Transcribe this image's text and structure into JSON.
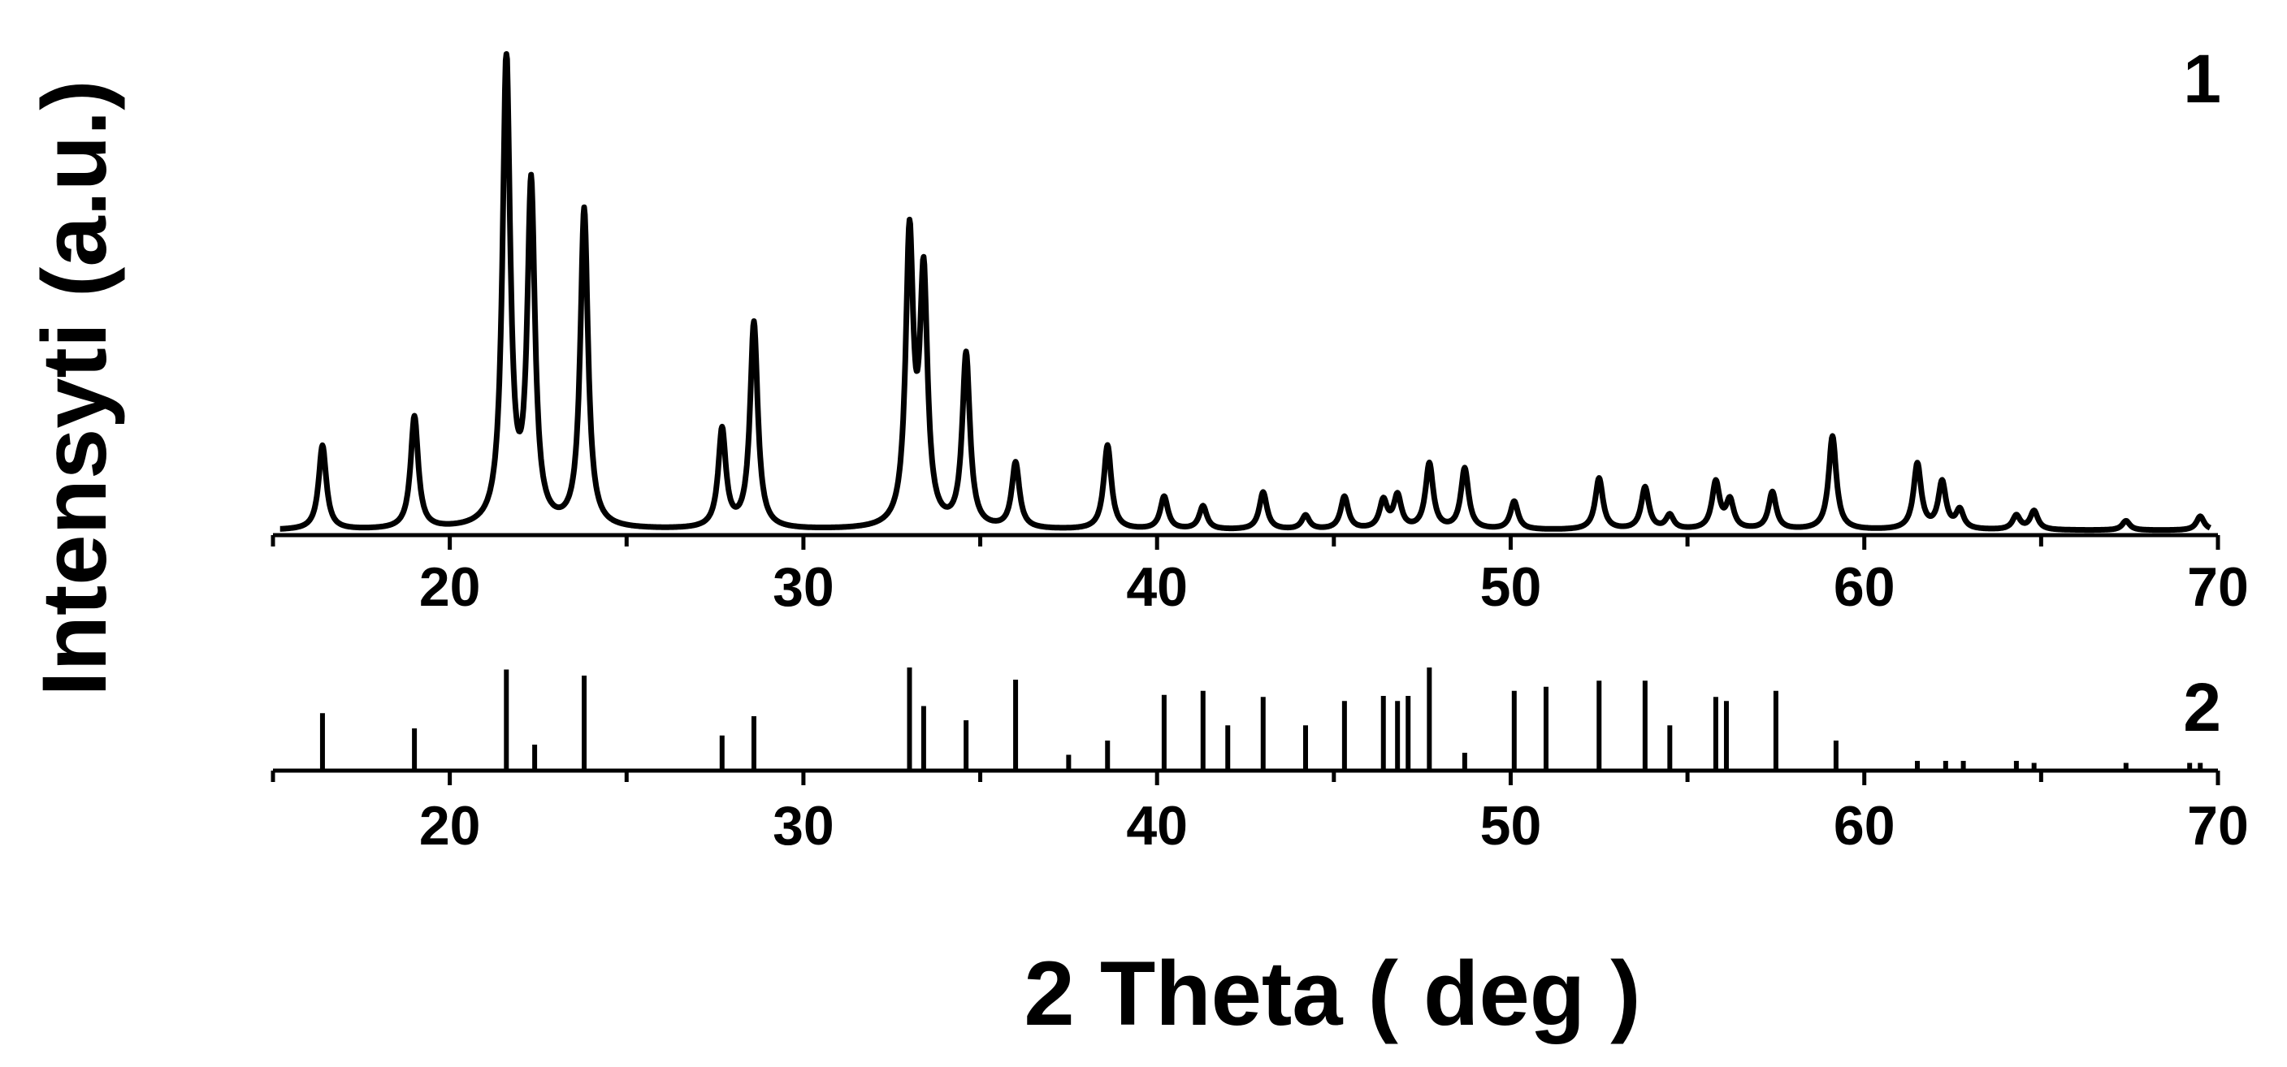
{
  "chart_data": {
    "type": "line",
    "ylabel": "Intensyti (a.u.)",
    "xlabel": "2 Theta ( deg )",
    "xlim": [
      15,
      70
    ],
    "x_ticks": [
      20,
      30,
      40,
      50,
      60,
      70
    ],
    "panels": [
      {
        "label": "1",
        "type": "line",
        "baseline": 0.02,
        "peaks": [
          {
            "x": 16.4,
            "y": 0.18
          },
          {
            "x": 19.0,
            "y": 0.24
          },
          {
            "x": 21.6,
            "y": 1.0
          },
          {
            "x": 22.3,
            "y": 0.72
          },
          {
            "x": 23.8,
            "y": 0.68
          },
          {
            "x": 27.7,
            "y": 0.21
          },
          {
            "x": 28.6,
            "y": 0.44
          },
          {
            "x": 33.0,
            "y": 0.61
          },
          {
            "x": 33.4,
            "y": 0.52
          },
          {
            "x": 34.6,
            "y": 0.37
          },
          {
            "x": 36.0,
            "y": 0.14
          },
          {
            "x": 38.6,
            "y": 0.18
          },
          {
            "x": 40.2,
            "y": 0.07
          },
          {
            "x": 41.3,
            "y": 0.05
          },
          {
            "x": 43.0,
            "y": 0.08
          },
          {
            "x": 44.2,
            "y": 0.03
          },
          {
            "x": 45.3,
            "y": 0.07
          },
          {
            "x": 46.4,
            "y": 0.06
          },
          {
            "x": 46.8,
            "y": 0.07
          },
          {
            "x": 47.7,
            "y": 0.14
          },
          {
            "x": 48.7,
            "y": 0.13
          },
          {
            "x": 50.1,
            "y": 0.06
          },
          {
            "x": 52.5,
            "y": 0.11
          },
          {
            "x": 53.8,
            "y": 0.09
          },
          {
            "x": 54.5,
            "y": 0.03
          },
          {
            "x": 55.8,
            "y": 0.1
          },
          {
            "x": 56.2,
            "y": 0.06
          },
          {
            "x": 57.4,
            "y": 0.08
          },
          {
            "x": 59.1,
            "y": 0.2
          },
          {
            "x": 61.5,
            "y": 0.14
          },
          {
            "x": 62.2,
            "y": 0.1
          },
          {
            "x": 62.7,
            "y": 0.04
          },
          {
            "x": 64.3,
            "y": 0.03
          },
          {
            "x": 64.8,
            "y": 0.04
          },
          {
            "x": 67.4,
            "y": 0.02
          },
          {
            "x": 69.5,
            "y": 0.03
          }
        ]
      },
      {
        "label": "2",
        "type": "bar",
        "sticks": [
          {
            "x": 16.4,
            "y": 0.55
          },
          {
            "x": 19.0,
            "y": 0.4
          },
          {
            "x": 21.6,
            "y": 0.98
          },
          {
            "x": 22.4,
            "y": 0.24
          },
          {
            "x": 23.8,
            "y": 0.92
          },
          {
            "x": 27.7,
            "y": 0.33
          },
          {
            "x": 28.6,
            "y": 0.52
          },
          {
            "x": 33.0,
            "y": 1.0
          },
          {
            "x": 33.4,
            "y": 0.62
          },
          {
            "x": 34.6,
            "y": 0.48
          },
          {
            "x": 36.0,
            "y": 0.88
          },
          {
            "x": 37.5,
            "y": 0.14
          },
          {
            "x": 38.6,
            "y": 0.28
          },
          {
            "x": 40.2,
            "y": 0.73
          },
          {
            "x": 41.3,
            "y": 0.77
          },
          {
            "x": 42.0,
            "y": 0.43
          },
          {
            "x": 43.0,
            "y": 0.71
          },
          {
            "x": 44.2,
            "y": 0.43
          },
          {
            "x": 45.3,
            "y": 0.67
          },
          {
            "x": 46.4,
            "y": 0.72
          },
          {
            "x": 46.8,
            "y": 0.67
          },
          {
            "x": 47.1,
            "y": 0.72
          },
          {
            "x": 47.7,
            "y": 1.0
          },
          {
            "x": 48.7,
            "y": 0.16
          },
          {
            "x": 50.1,
            "y": 0.77
          },
          {
            "x": 51.0,
            "y": 0.81
          },
          {
            "x": 52.5,
            "y": 0.87
          },
          {
            "x": 53.8,
            "y": 0.87
          },
          {
            "x": 54.5,
            "y": 0.43
          },
          {
            "x": 55.8,
            "y": 0.71
          },
          {
            "x": 56.1,
            "y": 0.67
          },
          {
            "x": 57.5,
            "y": 0.77
          },
          {
            "x": 59.2,
            "y": 0.28
          },
          {
            "x": 61.5,
            "y": 0.08
          },
          {
            "x": 62.3,
            "y": 0.08
          },
          {
            "x": 62.8,
            "y": 0.08
          },
          {
            "x": 64.3,
            "y": 0.08
          },
          {
            "x": 64.8,
            "y": 0.06
          },
          {
            "x": 67.4,
            "y": 0.06
          },
          {
            "x": 69.2,
            "y": 0.06
          },
          {
            "x": 69.5,
            "y": 0.06
          }
        ]
      }
    ]
  }
}
